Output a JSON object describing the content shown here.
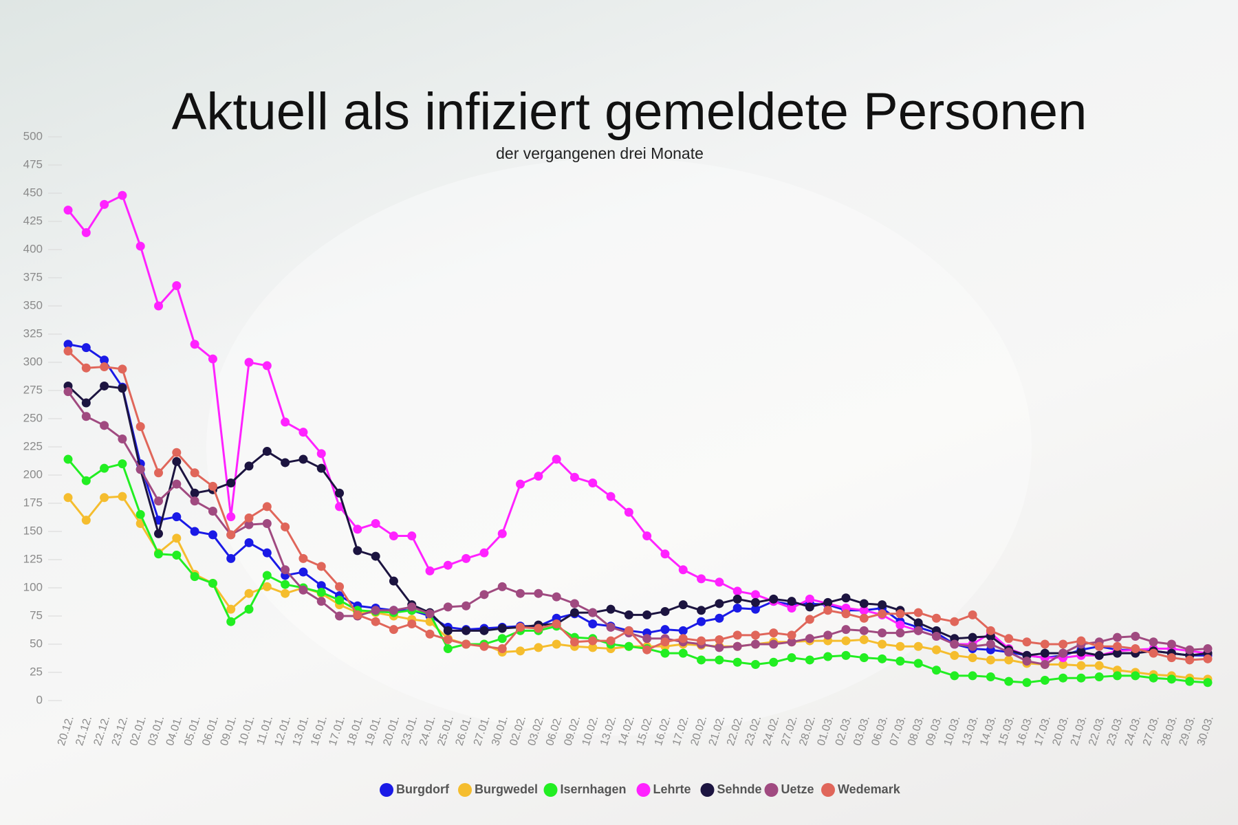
{
  "chart_data": {
    "type": "line",
    "title": "Aktuell als infiziert gemeldete Personen",
    "subtitle": "der vergangenen drei Monate",
    "categories": [
      "20.12.",
      "21.12.",
      "22.12.",
      "23.12.",
      "02.01.",
      "03.01.",
      "04.01.",
      "05.01.",
      "06.01.",
      "09.01.",
      "10.01.",
      "11.01.",
      "12.01.",
      "13.01.",
      "16.01.",
      "17.01.",
      "18.01.",
      "19.01.",
      "20.01.",
      "23.01.",
      "24.01.",
      "25.01.",
      "26.01.",
      "27.01.",
      "30.01.",
      "02.02.",
      "03.02.",
      "06.02.",
      "09.02.",
      "10.02.",
      "13.02.",
      "14.02.",
      "15.02.",
      "16.02.",
      "17.02.",
      "20.02.",
      "21.02.",
      "22.02.",
      "23.02.",
      "24.02.",
      "27.02.",
      "28.02.",
      "01.03.",
      "02.03.",
      "03.03.",
      "06.03.",
      "07.03.",
      "08.03.",
      "09.03.",
      "10.03.",
      "13.03.",
      "14.03.",
      "15.03.",
      "16.03.",
      "17.03.",
      "20.03.",
      "21.03.",
      "22.03.",
      "23.03.",
      "24.03.",
      "27.03.",
      "28.03.",
      "29.03.",
      "30.03."
    ],
    "ylim": [
      0,
      500
    ],
    "yticks": [
      0,
      25,
      50,
      75,
      100,
      125,
      150,
      175,
      200,
      225,
      250,
      275,
      300,
      325,
      350,
      375,
      400,
      425,
      450,
      475,
      500
    ],
    "legend": "bottom",
    "series": [
      {
        "name": "Burgdorf",
        "color": "#1a1ae6",
        "values": [
          316,
          313,
          302,
          278,
          210,
          160,
          163,
          150,
          147,
          126,
          140,
          131,
          111,
          114,
          102,
          93,
          84,
          82,
          80,
          80,
          75,
          65,
          63,
          64,
          65,
          66,
          66,
          73,
          77,
          68,
          66,
          62,
          60,
          63,
          62,
          70,
          73,
          82,
          81,
          88,
          85,
          86,
          85,
          80,
          80,
          82,
          70,
          65,
          60,
          50,
          46,
          45,
          43,
          40,
          38,
          40,
          45,
          48,
          45,
          45,
          44,
          42,
          40,
          40
        ]
      },
      {
        "name": "Burgwedel",
        "color": "#f5bd2e",
        "values": [
          180,
          160,
          180,
          181,
          157,
          131,
          144,
          112,
          104,
          81,
          95,
          101,
          95,
          100,
          95,
          85,
          78,
          78,
          75,
          72,
          70,
          55,
          50,
          50,
          43,
          44,
          47,
          50,
          48,
          47,
          46,
          48,
          48,
          48,
          50,
          49,
          48,
          48,
          50,
          52,
          52,
          53,
          53,
          53,
          54,
          50,
          48,
          48,
          45,
          40,
          38,
          36,
          36,
          33,
          32,
          32,
          31,
          31,
          27,
          25,
          23,
          22,
          20,
          19
        ]
      },
      {
        "name": "Isernhagen",
        "color": "#22ee22",
        "values": [
          214,
          195,
          206,
          210,
          165,
          130,
          129,
          110,
          104,
          70,
          81,
          111,
          103,
          100,
          96,
          89,
          80,
          79,
          78,
          80,
          77,
          46,
          50,
          50,
          55,
          62,
          62,
          66,
          56,
          55,
          50,
          48,
          46,
          42,
          42,
          36,
          36,
          34,
          32,
          34,
          38,
          36,
          39,
          40,
          38,
          37,
          35,
          33,
          27,
          22,
          22,
          21,
          17,
          16,
          18,
          20,
          20,
          21,
          22,
          22,
          20,
          19,
          17,
          16
        ]
      },
      {
        "name": "Lehrte",
        "color": "#ff22ff",
        "values": [
          435,
          415,
          440,
          448,
          403,
          350,
          368,
          316,
          303,
          163,
          300,
          297,
          247,
          238,
          219,
          172,
          152,
          157,
          146,
          146,
          115,
          120,
          126,
          131,
          148,
          192,
          199,
          214,
          198,
          193,
          181,
          167,
          146,
          130,
          116,
          108,
          105,
          97,
          94,
          88,
          82,
          90,
          86,
          82,
          80,
          76,
          67,
          62,
          57,
          50,
          50,
          60,
          46,
          40,
          38,
          38,
          40,
          40,
          44,
          45,
          46,
          46,
          44,
          42
        ]
      },
      {
        "name": "Sehnde",
        "color": "#1c1440",
        "values": [
          279,
          264,
          279,
          277,
          205,
          148,
          212,
          184,
          187,
          193,
          208,
          221,
          211,
          214,
          206,
          184,
          133,
          128,
          106,
          85,
          78,
          62,
          62,
          62,
          64,
          65,
          67,
          68,
          78,
          78,
          81,
          76,
          76,
          79,
          85,
          80,
          86,
          90,
          87,
          90,
          88,
          83,
          87,
          91,
          86,
          85,
          80,
          69,
          62,
          55,
          56,
          57,
          45,
          40,
          42,
          42,
          43,
          40,
          42,
          42,
          44,
          42,
          40,
          42
        ]
      },
      {
        "name": "Uetze",
        "color": "#a04a80",
        "values": [
          274,
          252,
          244,
          232,
          205,
          177,
          192,
          177,
          168,
          147,
          156,
          157,
          116,
          98,
          88,
          75,
          75,
          80,
          80,
          83,
          77,
          83,
          84,
          94,
          101,
          95,
          95,
          92,
          86,
          78,
          65,
          60,
          55,
          55,
          52,
          50,
          47,
          48,
          50,
          50,
          52,
          55,
          58,
          63,
          62,
          60,
          60,
          62,
          57,
          50,
          48,
          50,
          43,
          35,
          32,
          42,
          50,
          52,
          56,
          57,
          52,
          50,
          45,
          46
        ]
      },
      {
        "name": "Wedemark",
        "color": "#e0665a",
        "values": [
          310,
          295,
          296,
          294,
          243,
          202,
          220,
          202,
          190,
          147,
          162,
          172,
          154,
          126,
          119,
          101,
          76,
          70,
          63,
          68,
          59,
          54,
          50,
          48,
          46,
          65,
          64,
          68,
          52,
          53,
          53,
          62,
          45,
          52,
          55,
          53,
          54,
          58,
          58,
          60,
          58,
          72,
          80,
          77,
          73,
          77,
          77,
          78,
          73,
          70,
          76,
          62,
          55,
          52,
          50,
          50,
          53,
          48,
          48,
          46,
          42,
          38,
          36,
          37
        ]
      }
    ]
  }
}
